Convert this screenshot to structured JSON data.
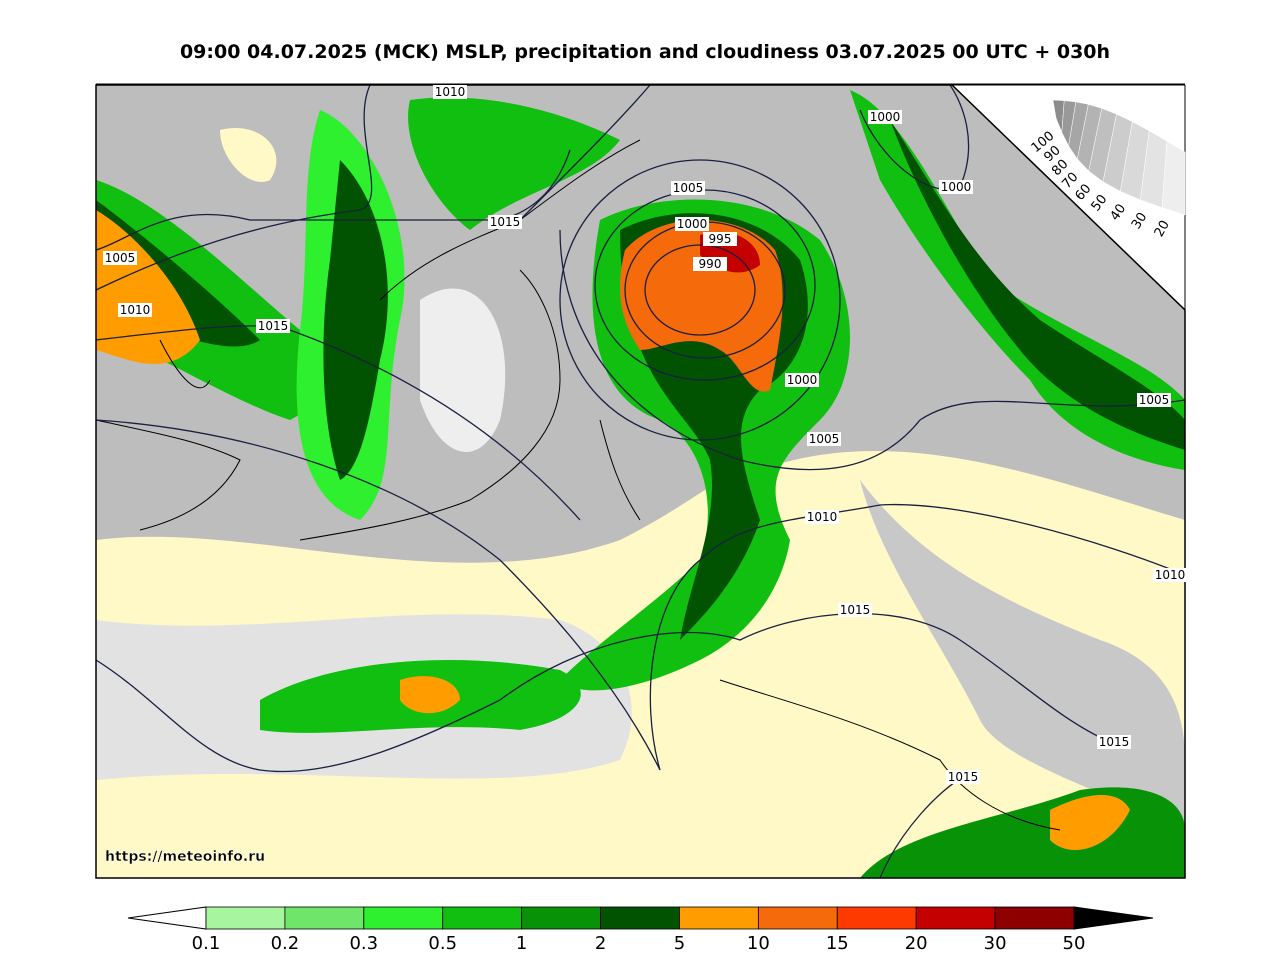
{
  "title": "09:00 04.07.2025 (MCK) MSLP, precipitation and cloudiness 03.07.2025 00 UTC + 030h",
  "isobar_labels": [
    1010,
    1015,
    1005,
    1010,
    1015,
    1000,
    1000,
    1005,
    1000,
    995,
    990,
    1000,
    1005,
    1005,
    1010,
    1010,
    1015,
    1015,
    1015
  ],
  "cloudiness_scale": {
    "labels": [
      100,
      90,
      80,
      70,
      60,
      50,
      40,
      30,
      20
    ],
    "colors": [
      "#8c8c8c",
      "#999999",
      "#a6a6a6",
      "#b3b3b3",
      "#bfbfbf",
      "#cccccc",
      "#d9d9d9",
      "#e3e3e3",
      "#eeeeee"
    ]
  },
  "precipitation_scale": {
    "labels": [
      0.1,
      0.2,
      0.3,
      0.5,
      1,
      2,
      5,
      10,
      15,
      20,
      30,
      50
    ],
    "colors": [
      "#a8f5a0",
      "#6fe56a",
      "#2ef02e",
      "#10bf10",
      "#089208",
      "#015201",
      "#ff9c00",
      "#f56a0a",
      "#ff3a00",
      "#c40000",
      "#8e0000"
    ]
  },
  "source": "https://meteoinfo.ru"
}
